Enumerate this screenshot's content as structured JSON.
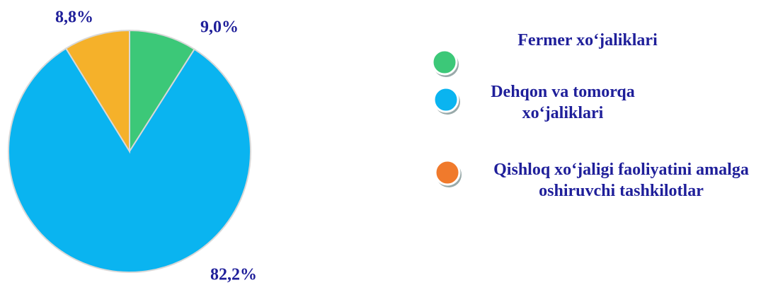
{
  "chart_data": {
    "type": "pie",
    "categories": [
      "Fermer xo‘jaliklari",
      "Dehqon va tomorqa xo‘jaliklari",
      "Qishloq xo‘jaligi faoliyatini amalga oshiruvchi tashkilotlar"
    ],
    "values": [
      9.0,
      82.2,
      8.8
    ],
    "value_labels": [
      "9,0%",
      "82,2%",
      "8,8%"
    ],
    "colors": [
      "#3cc878",
      "#0ab4f0",
      "#f5b12a"
    ],
    "legend_colors": [
      "#3cc878",
      "#0ab4f0",
      "#f07a2c"
    ]
  }
}
